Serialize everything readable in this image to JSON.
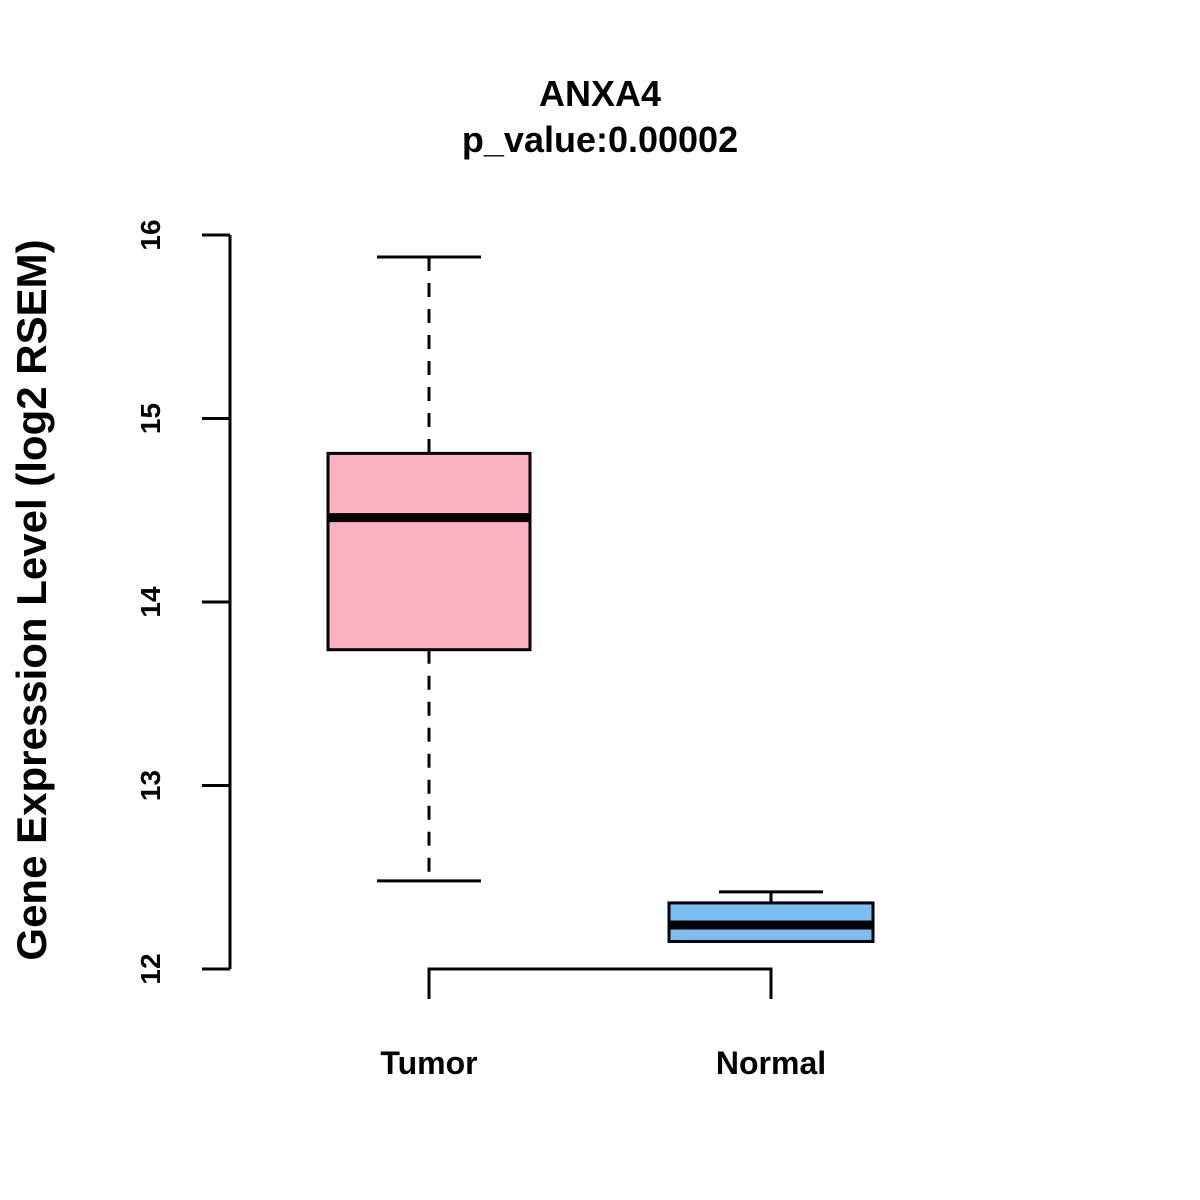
{
  "chart_data": {
    "type": "boxplot",
    "title": "ANXA4",
    "subtitle": "p_value:0.00002",
    "xlabel": "",
    "ylabel": "Gene Expression Level (log2 RSEM)",
    "ylim": [
      12,
      16
    ],
    "yticks": [
      12,
      13,
      14,
      15,
      16
    ],
    "ytick_labels": [
      "12",
      "13",
      "14",
      "15",
      "16"
    ],
    "grid": false,
    "legend": "none",
    "bracket": {
      "from": "Tumor",
      "to": "Normal",
      "y": 12.0
    },
    "groups": [
      {
        "name": "Tumor",
        "color": "#fbb0c1",
        "whisker_low": 12.48,
        "q1": 13.74,
        "median": 14.46,
        "q3": 14.81,
        "whisker_high": 15.88
      },
      {
        "name": "Normal",
        "color": "#7bbef3",
        "whisker_low": 12.15,
        "q1": 12.15,
        "median": 12.24,
        "q3": 12.36,
        "whisker_high": 12.42
      }
    ]
  }
}
